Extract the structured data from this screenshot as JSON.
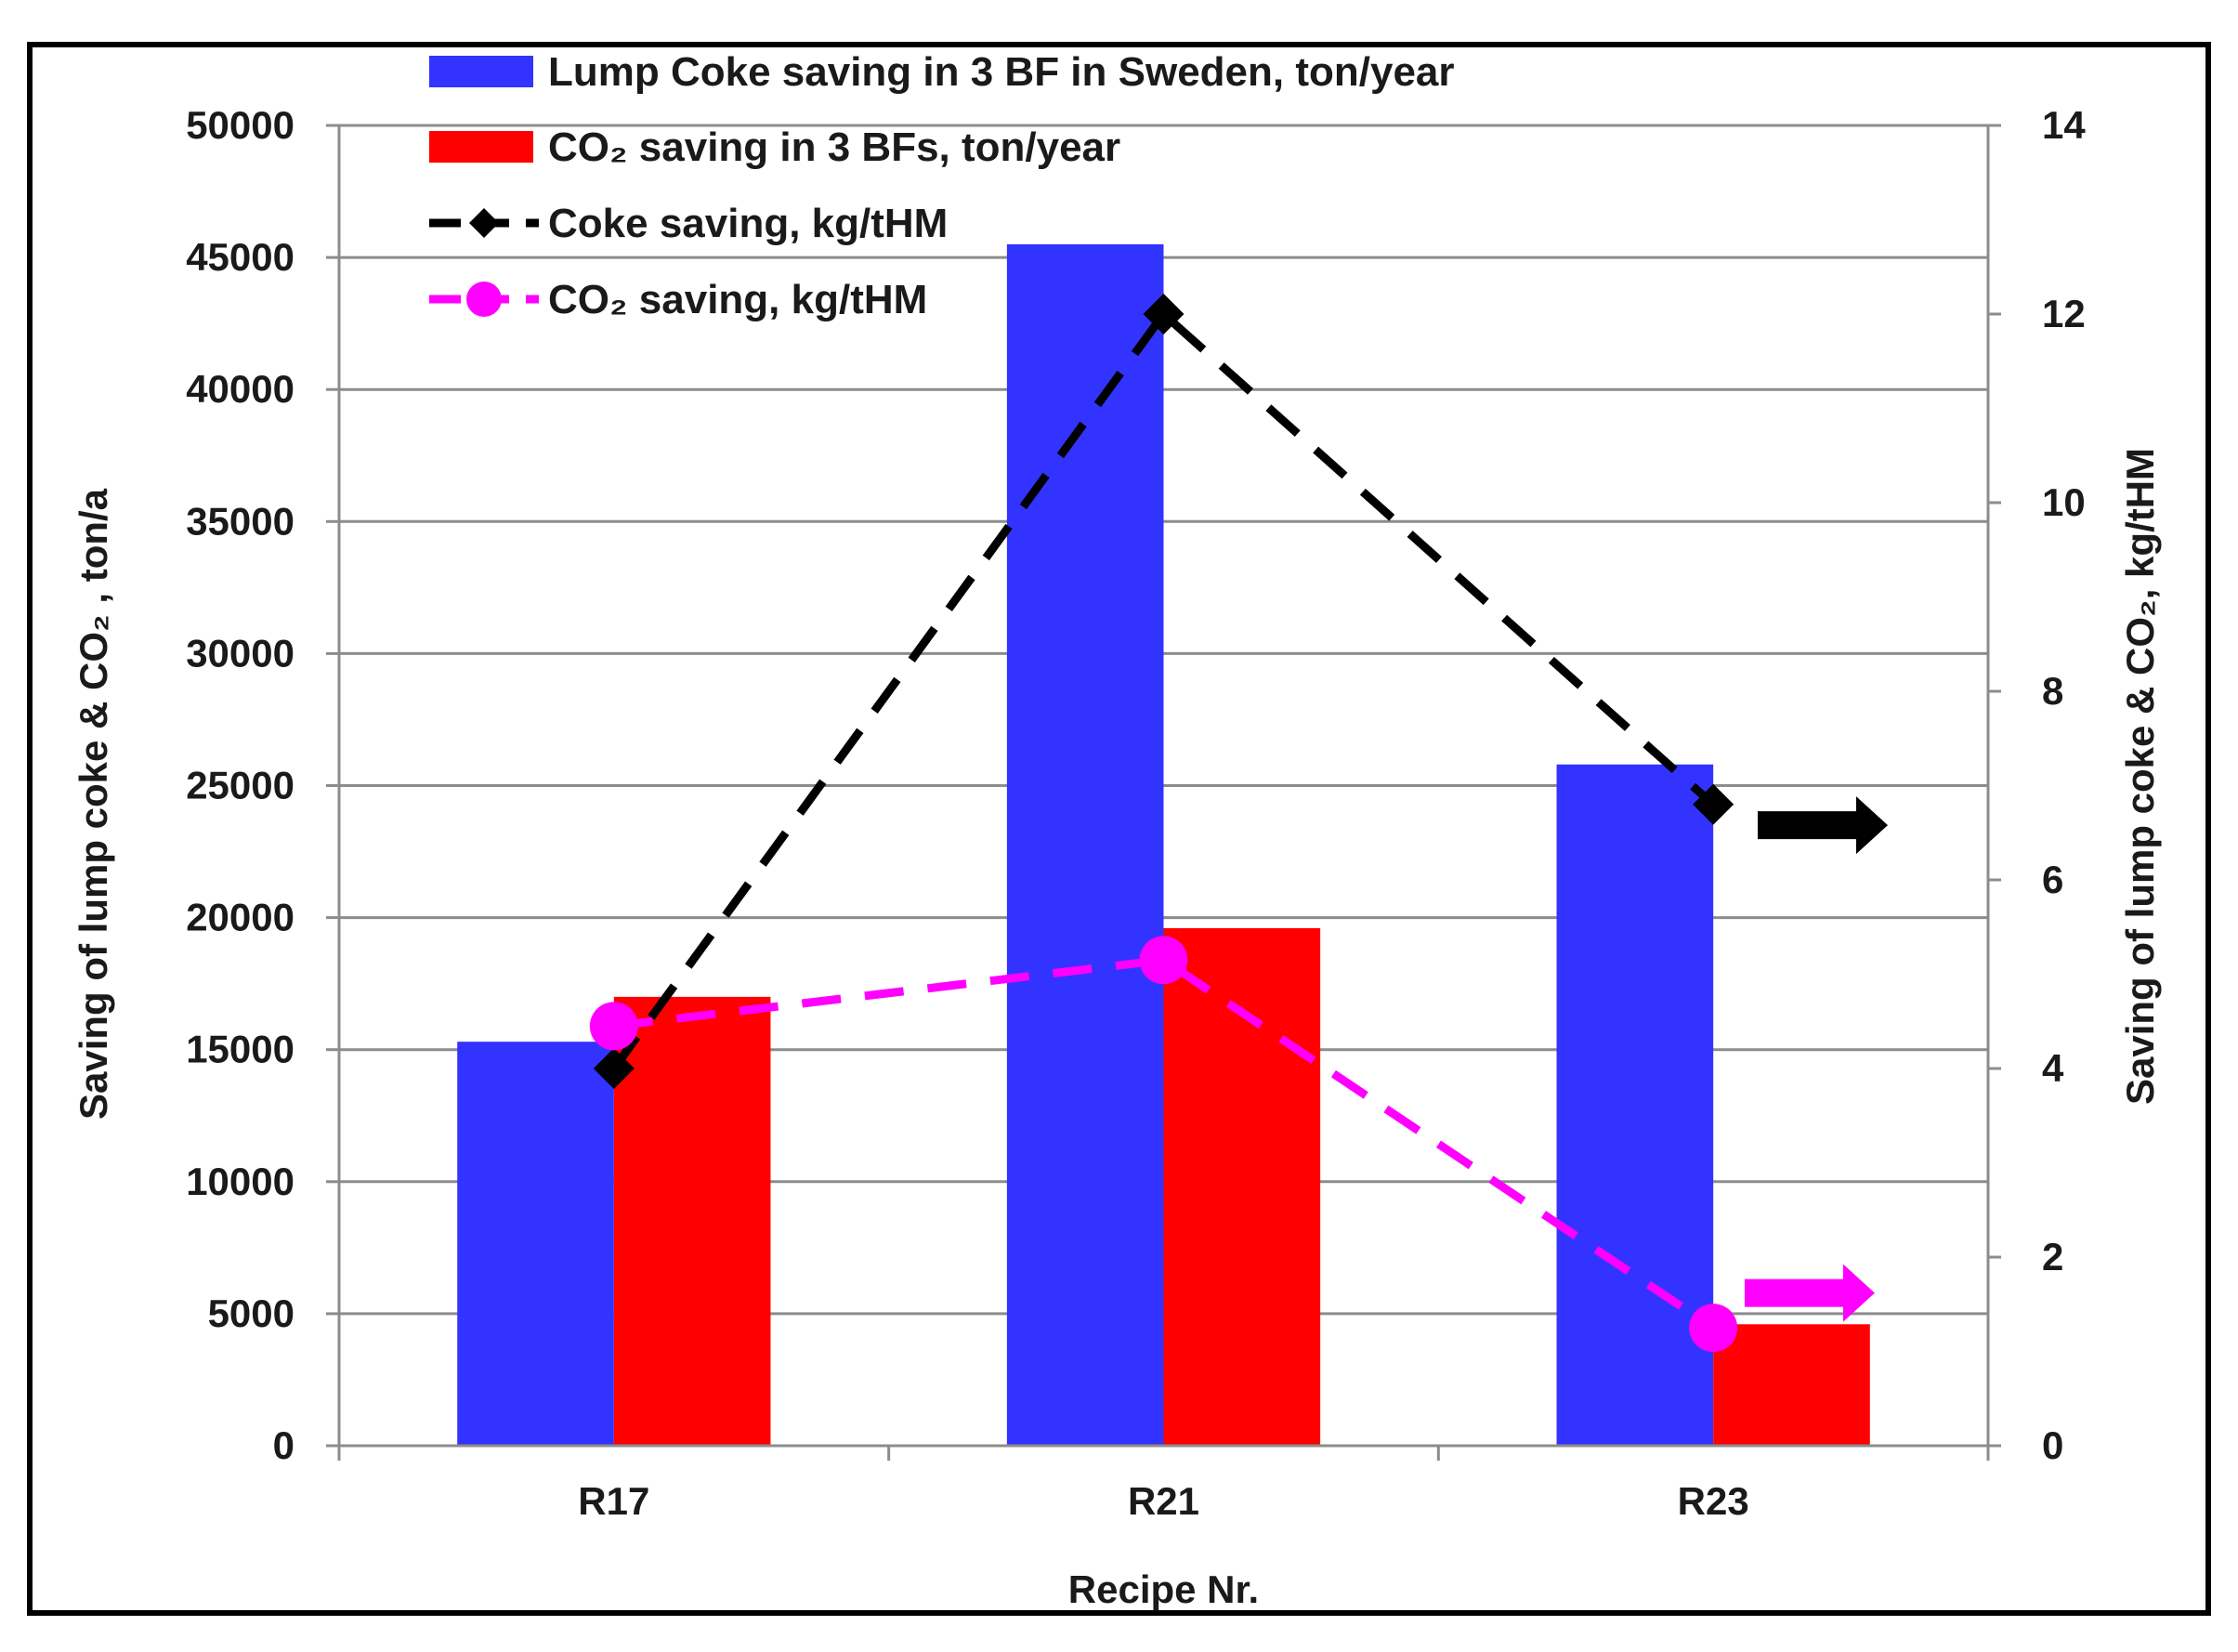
{
  "chart_data": {
    "type": "bar",
    "categories": [
      "R17",
      "R21",
      "R23"
    ],
    "xlabel": "Recipe Nr.",
    "ylabel_left": "Saving of lump coke & CO₂ , ton/a",
    "ylabel_right": "Saving of lump coke & CO₂,  kg/tHM",
    "ylim_left": [
      0,
      50000
    ],
    "yticks_left": [
      0,
      5000,
      10000,
      15000,
      20000,
      25000,
      30000,
      35000,
      40000,
      45000,
      50000
    ],
    "ylim_right": [
      0,
      14
    ],
    "yticks_right": [
      0,
      2,
      4,
      6,
      8,
      10,
      12,
      14
    ],
    "grid": true,
    "legend_position": "top-left",
    "series": [
      {
        "name": "Lump Coke saving in 3 BF in Sweden, ton/year",
        "kind": "bar",
        "axis": "left",
        "color": "#3333ff",
        "values": [
          15300,
          45500,
          25800
        ]
      },
      {
        "name": "CO₂ saving in 3 BFs, ton/year",
        "kind": "bar",
        "axis": "left",
        "color": "#ff0000",
        "values": [
          17000,
          19600,
          4600
        ]
      },
      {
        "name": "Coke saving, kg/tHM",
        "kind": "line",
        "axis": "right",
        "color": "#000000",
        "marker": "diamond",
        "values": [
          4.0,
          12.0,
          6.8
        ]
      },
      {
        "name": "CO₂ saving, kg/tHM",
        "kind": "line",
        "axis": "right",
        "color": "#ff00ff",
        "marker": "circle",
        "values": [
          4.45,
          5.15,
          1.25
        ]
      }
    ],
    "annotations": [
      {
        "type": "arrow",
        "direction": "right",
        "color": "#000000",
        "points_to": "right-axis",
        "series": "Coke saving, kg/tHM"
      },
      {
        "type": "arrow",
        "direction": "right",
        "color": "#ff00ff",
        "points_to": "right-axis",
        "series": "CO₂ saving, kg/tHM"
      }
    ]
  }
}
